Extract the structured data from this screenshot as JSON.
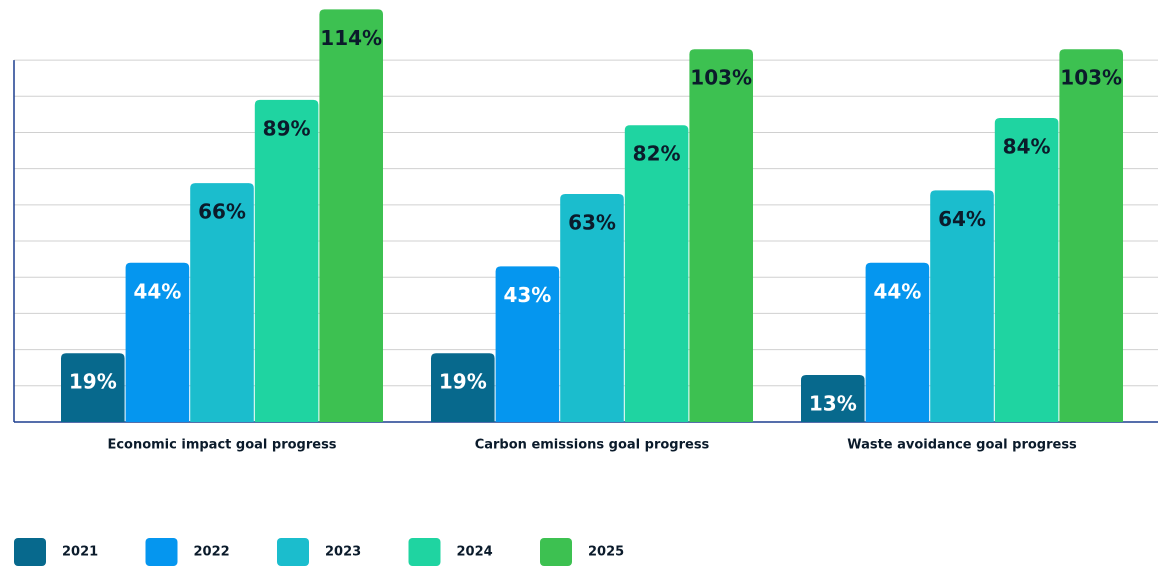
{
  "chart_data": {
    "type": "bar",
    "categories": [
      "Economic impact goal progress",
      "Carbon emissions goal progress",
      "Waste avoidance goal progress"
    ],
    "series": [
      {
        "name": "2021",
        "color": "#07698d",
        "label_color": "#ffffff",
        "values": [
          19,
          19,
          13
        ],
        "value_labels": [
          "19%",
          "19%",
          "13%"
        ]
      },
      {
        "name": "2022",
        "color": "#0596ef",
        "label_color": "#ffffff",
        "values": [
          44,
          43,
          44
        ],
        "value_labels": [
          "44%",
          "43%",
          "44%"
        ]
      },
      {
        "name": "2023",
        "color": "#1bbdcd",
        "label_color": "#0b1b2b",
        "values": [
          66,
          63,
          64
        ],
        "value_labels": [
          "66%",
          "63%",
          "64%"
        ]
      },
      {
        "name": "2024",
        "color": "#1fd4a1",
        "label_color": "#0b1b2b",
        "values": [
          89,
          82,
          84
        ],
        "value_labels": [
          "89%",
          "82%",
          "84%"
        ]
      },
      {
        "name": "2025",
        "color": "#3dc151",
        "label_color": "#0b1b2b",
        "values": [
          114,
          103,
          103
        ],
        "value_labels": [
          "114%",
          "103%",
          "103%"
        ]
      }
    ],
    "ylim": [
      0,
      116.6
    ],
    "yticks": [
      0,
      10,
      20,
      30,
      40,
      50,
      60,
      70,
      80,
      90,
      100
    ],
    "grid": true,
    "show_tick_labels": false,
    "legend": "bottom-left"
  }
}
